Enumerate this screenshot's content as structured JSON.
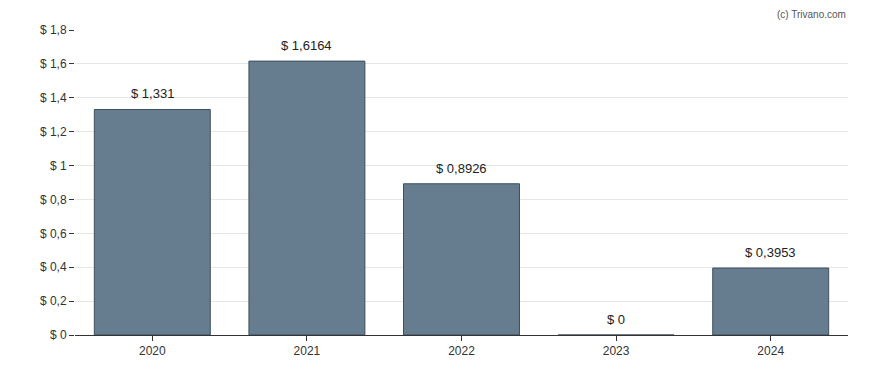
{
  "chart_data": {
    "type": "bar",
    "categories": [
      "2020",
      "2021",
      "2022",
      "2023",
      "2024"
    ],
    "values": [
      1.331,
      1.6164,
      0.8926,
      0,
      0.3953
    ],
    "value_labels": [
      "$ 1,331",
      "$ 1,6164",
      "$ 0,8926",
      "$ 0",
      "$ 0,3953"
    ],
    "data_labels": true,
    "color": "#667d8f",
    "ylim": [
      0,
      1.8
    ],
    "yticks": [
      {
        "value": 0,
        "label": "$ 0"
      },
      {
        "value": 0.2,
        "label": "$ 0,2"
      },
      {
        "value": 0.4,
        "label": "$ 0,4"
      },
      {
        "value": 0.6,
        "label": "$ 0,6"
      },
      {
        "value": 0.8,
        "label": "$ 0,8"
      },
      {
        "value": 1,
        "label": "$ 1"
      },
      {
        "value": 1.2,
        "label": "$ 1,2"
      },
      {
        "value": 1.4,
        "label": "$ 1,4"
      },
      {
        "value": 1.6,
        "label": "$ 1,6"
      },
      {
        "value": 1.8,
        "label": "$ 1,8"
      }
    ],
    "grid": true,
    "annotations": [
      "(c) Trivano.com"
    ]
  }
}
